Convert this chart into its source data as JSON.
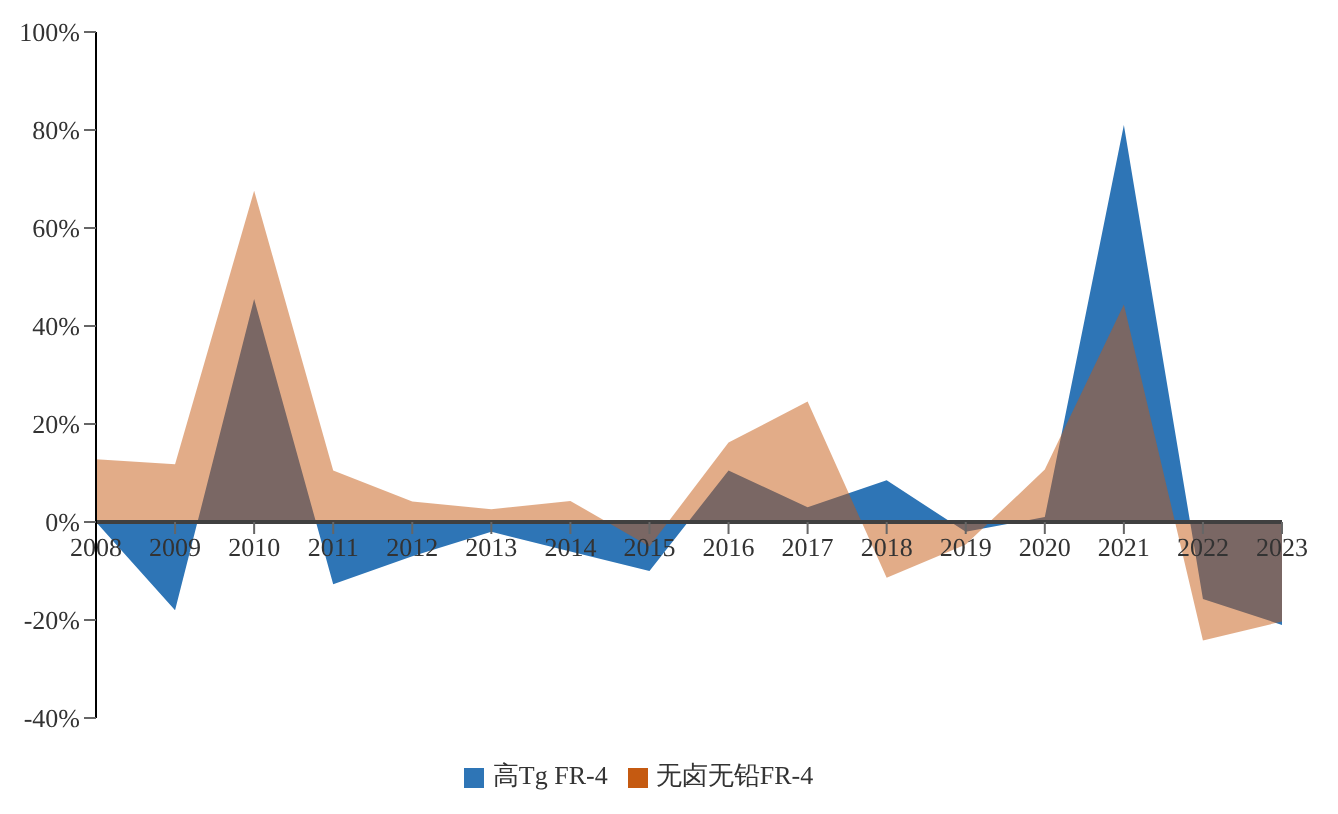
{
  "chart_data": {
    "type": "area",
    "categories": [
      "2008",
      "2009",
      "2010",
      "2011",
      "2012",
      "2013",
      "2014",
      "2015",
      "2016",
      "2017",
      "2018",
      "2019",
      "2020",
      "2021",
      "2022",
      "2023"
    ],
    "series": [
      {
        "name": "高Tg FR-4",
        "color": "#2e75b6",
        "values": [
          0,
          -18,
          45.5,
          -12.7,
          -7,
          -2,
          -6,
          -10,
          10.5,
          3,
          8.5,
          -2,
          1,
          81,
          -15.7,
          -21
        ]
      },
      {
        "name": "无卤无铅FR-4",
        "color": "#c55a11",
        "values": [
          12.8,
          11.8,
          67.6,
          10.5,
          4.2,
          2.6,
          4.3,
          -5,
          16.2,
          24.6,
          -11.4,
          -4.6,
          10.7,
          44.4,
          -24.2,
          -20.3
        ]
      }
    ],
    "ylim": [
      -40,
      100
    ],
    "yticks": [
      {
        "value": -40,
        "label": "-40%"
      },
      {
        "value": -20,
        "label": "-20%"
      },
      {
        "value": 0,
        "label": "0%"
      },
      {
        "value": 20,
        "label": "20%"
      },
      {
        "value": 40,
        "label": "40%"
      },
      {
        "value": 60,
        "label": "60%"
      },
      {
        "value": 80,
        "label": "80%"
      },
      {
        "value": 100,
        "label": "100%"
      }
    ],
    "grid": false,
    "legend": "bottom"
  }
}
